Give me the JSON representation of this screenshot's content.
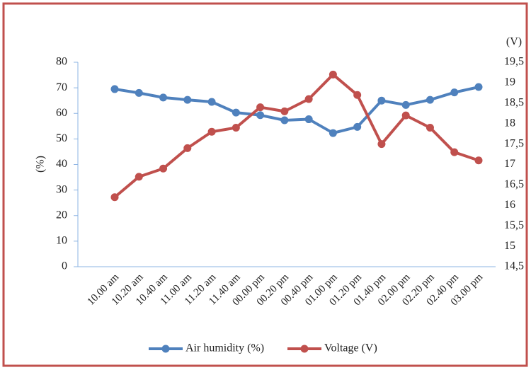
{
  "chart_data": {
    "type": "line",
    "y_label": "(%)",
    "y2_label": "(V)",
    "categories": [
      "10.00 am",
      "10.20 am",
      "10.40 am",
      "11.00 am",
      "11.20 am",
      "11.40 am",
      "00.00 pm",
      "00.20 pm",
      "00.40 pm",
      "01.00 pm",
      "01.20 pm",
      "01.40 pm",
      "02.00 pm",
      "02.20 pm",
      "02.40 pm",
      "03.00 pm"
    ],
    "series": [
      {
        "name": "Air humidity (%)",
        "color": "#4f81bd",
        "values": [
          69.5,
          68,
          66.2,
          65.3,
          64.5,
          60.3,
          59.3,
          57.3,
          57.7,
          52.3,
          54.7,
          65,
          63.3,
          65.3,
          68.2,
          70.3
        ]
      },
      {
        "name": "Voltage (V)",
        "color": "#c0504d",
        "axis": "y2",
        "values": [
          16.2,
          16.7,
          16.9,
          17.4,
          17.8,
          17.9,
          18.4,
          18.3,
          18.6,
          19.2,
          18.7,
          17.5,
          18.2,
          17.9,
          17.3,
          17.1
        ]
      }
    ],
    "ylim": [
      0,
      80
    ],
    "yticks": [
      0,
      10,
      20,
      30,
      40,
      50,
      60,
      70,
      80
    ],
    "y2lim": [
      14.5,
      19.5
    ],
    "y2ticks": [
      {
        "value": 14.5,
        "label": "14,5"
      },
      15,
      {
        "value": 15.5,
        "label": "15,5"
      },
      16,
      {
        "value": 16.5,
        "label": "16,5"
      },
      17,
      {
        "value": 17.5,
        "label": "17,5"
      },
      18,
      {
        "value": 18.5,
        "label": "18,5"
      },
      19,
      {
        "value": 19.5,
        "label": "19,5"
      }
    ],
    "legend": "bottom"
  }
}
